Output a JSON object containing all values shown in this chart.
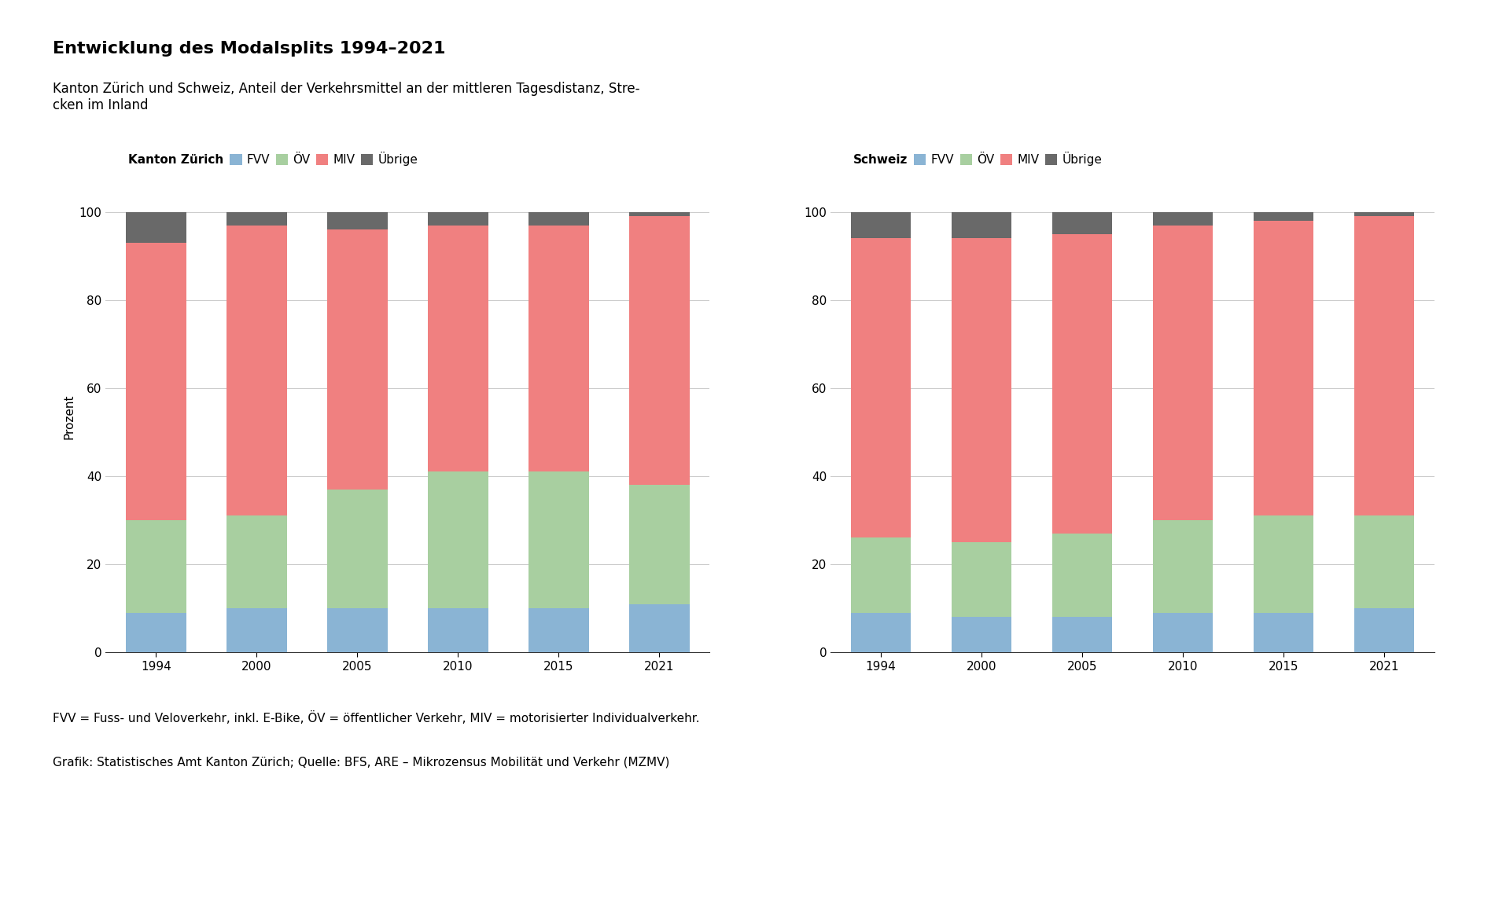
{
  "title": "Entwicklung des Modalsplits 1994–2021",
  "subtitle": "Kanton Zürich und Schweiz, Anteil der Verkehrsmittel an der mittleren Tagesdistanz, Stre-\ncken im Inland",
  "footnote1": "FVV = Fuss- und Veloverkehr, inkl. E-Bike, ÖV = öffentlicher Verkehr, MIV = motorisierter Individualverkehr.",
  "footnote2": "Grafik: Statistisches Amt Kanton Zürich; Quelle: BFS, ARE – Mikrozensus Mobilität und Verkehr (MZMV)",
  "years": [
    1994,
    2000,
    2005,
    2010,
    2015,
    2021
  ],
  "kanton_zuerich": {
    "label": "Kanton Zürich",
    "FVV": [
      9,
      10,
      10,
      10,
      10,
      11
    ],
    "OEV": [
      21,
      21,
      27,
      31,
      31,
      27
    ],
    "MIV": [
      63,
      66,
      59,
      56,
      56,
      61
    ],
    "Uebrige": [
      7,
      3,
      4,
      3,
      3,
      1
    ]
  },
  "schweiz": {
    "label": "Schweiz",
    "FVV": [
      9,
      8,
      8,
      9,
      9,
      10
    ],
    "OEV": [
      17,
      17,
      19,
      21,
      22,
      21
    ],
    "MIV": [
      68,
      69,
      68,
      67,
      67,
      68
    ],
    "Uebrige": [
      6,
      6,
      5,
      3,
      2,
      1
    ]
  },
  "colors": {
    "FVV": "#8ab4d4",
    "OEV": "#a8cfa0",
    "MIV": "#f08080",
    "Uebrige": "#696969"
  },
  "ylabel": "Prozent",
  "ylim": [
    0,
    105
  ],
  "yticks": [
    0,
    20,
    40,
    60,
    80,
    100
  ],
  "background_color": "#ffffff",
  "title_fontsize": 16,
  "subtitle_fontsize": 12,
  "axis_fontsize": 11,
  "legend_fontsize": 11,
  "footnote_fontsize": 11
}
